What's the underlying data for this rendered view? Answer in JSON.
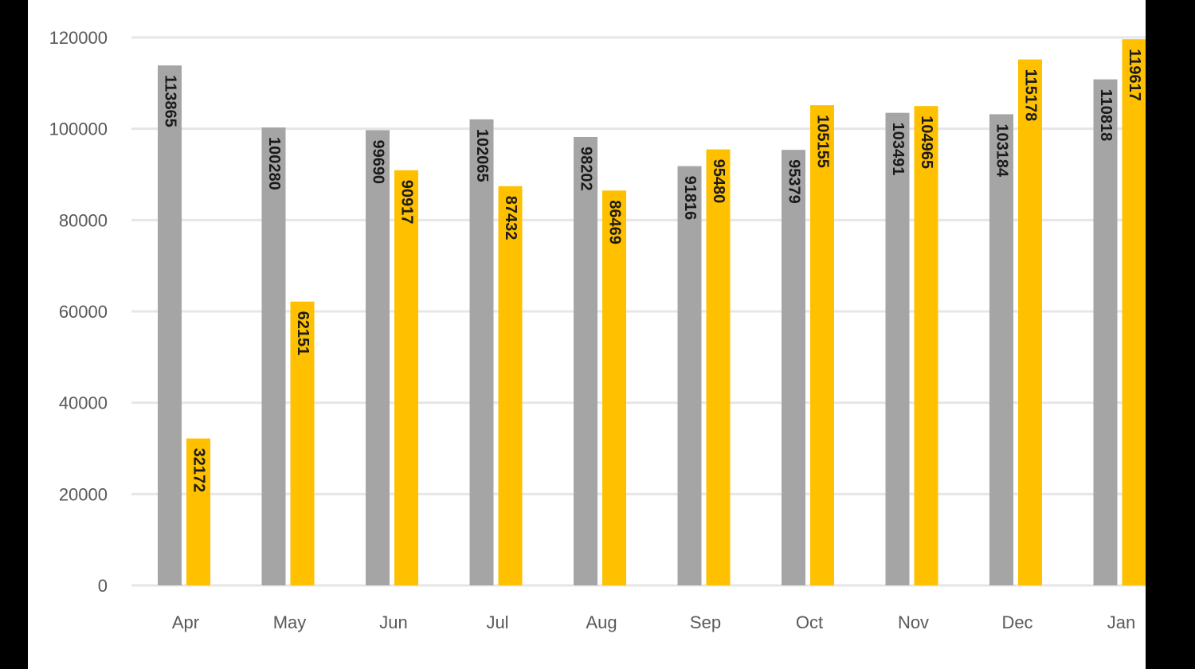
{
  "chart_data": {
    "type": "bar",
    "title": "",
    "xlabel": "",
    "ylabel": "",
    "ylim": [
      0,
      120000
    ],
    "yticks": [
      0,
      20000,
      40000,
      60000,
      80000,
      100000,
      120000
    ],
    "grid": true,
    "categories": [
      "Apr",
      "May",
      "Jun",
      "Jul",
      "Aug",
      "Sep",
      "Oct",
      "Nov",
      "Dec",
      "Jan"
    ],
    "series": [
      {
        "color": "#a5a5a5",
        "values": [
          113865,
          100280,
          99690,
          102065,
          98202,
          91816,
          95379,
          103491,
          103184,
          110818
        ]
      },
      {
        "color": "#ffc000",
        "values": [
          32172,
          62151,
          90917,
          87432,
          86469,
          95480,
          105155,
          104965,
          115178,
          119617
        ]
      }
    ]
  }
}
